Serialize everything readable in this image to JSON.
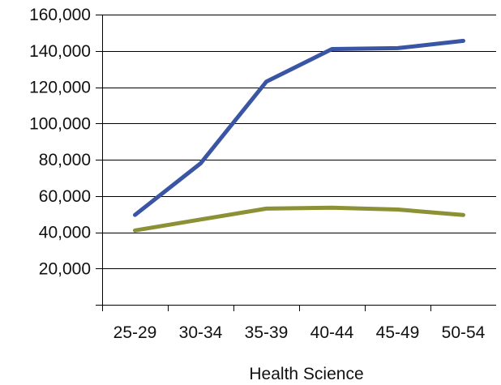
{
  "chart_data": {
    "type": "line",
    "title": "",
    "xlabel": "Health Science",
    "ylabel": "",
    "categories": [
      "25-29",
      "30-34",
      "35-39",
      "40-44",
      "45-49",
      "50-54"
    ],
    "ylim": [
      0,
      160000
    ],
    "yticks": [
      0,
      20000,
      40000,
      60000,
      80000,
      100000,
      120000,
      140000,
      160000
    ],
    "ytick_labels": [
      "",
      "20,000",
      "40,000",
      "60,000",
      "80,000",
      "100,000",
      "120,000",
      "140,000",
      "160,000"
    ],
    "grid": true,
    "legend": "none",
    "series": [
      {
        "color": "#3a55a4",
        "values": [
          49500,
          78000,
          123000,
          141000,
          141500,
          145500
        ]
      },
      {
        "color": "#8c9136",
        "values": [
          41000,
          47000,
          53000,
          53500,
          52500,
          49500
        ]
      }
    ]
  }
}
